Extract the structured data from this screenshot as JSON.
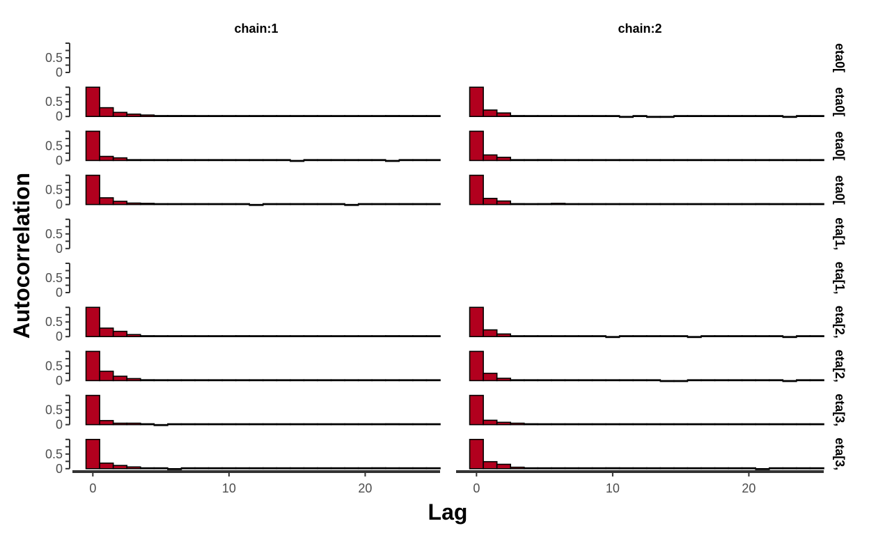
{
  "chart_data": {
    "type": "bar",
    "xlabel": "Lag",
    "ylabel": "Autocorrelation",
    "xlim": [
      -1.5,
      25.5
    ],
    "ylim": [
      0,
      1
    ],
    "x_ticks": [
      0,
      10,
      20
    ],
    "y_ticks": [
      0,
      0.5
    ],
    "grid": false,
    "colors": {
      "fill": "#b2001e",
      "outline": "#000000"
    },
    "facet_cols": [
      "chain:1",
      "chain:2"
    ],
    "facet_rows": [
      "eta0[",
      "eta0[",
      "eta0[",
      "eta0[",
      "eta[1,",
      "eta[1,",
      "eta[2,",
      "eta[2,",
      "eta[3,",
      "eta[3,"
    ],
    "lags": [
      0,
      1,
      2,
      3,
      4,
      5,
      6,
      7,
      8,
      9,
      10,
      11,
      12,
      13,
      14,
      15,
      16,
      17,
      18,
      19,
      20,
      21,
      22,
      23,
      24,
      25
    ],
    "panels": [
      {
        "row": 0,
        "col": 0,
        "values": []
      },
      {
        "row": 0,
        "col": 1,
        "values": []
      },
      {
        "row": 1,
        "col": 0,
        "values": [
          1,
          0.3,
          0.14,
          0.08,
          0.05,
          0.03,
          0.03,
          0.03,
          0.01,
          0.01,
          0.02,
          0.0,
          0.0,
          0.0,
          0.01,
          0.0,
          0.0,
          0.01,
          0.02,
          0.0,
          0.0,
          0.02,
          0.03,
          0.0,
          0.0,
          0.0
        ]
      },
      {
        "row": 1,
        "col": 1,
        "values": [
          1,
          0.22,
          0.12,
          0.03,
          0.0,
          0.02,
          0.01,
          0.01,
          0.0,
          0.01,
          0.0,
          -0.01,
          0.0,
          -0.01,
          -0.01,
          0.0,
          0.0,
          0.01,
          0.02,
          0.0,
          0.0,
          0.01,
          0.01,
          -0.01,
          0.0,
          0.0
        ]
      },
      {
        "row": 2,
        "col": 0,
        "values": [
          1,
          0.14,
          0.09,
          0.02,
          0.0,
          0.01,
          0.01,
          0.0,
          0.01,
          0.02,
          0.01,
          0.0,
          0.0,
          0.01,
          0.0,
          -0.01,
          0.0,
          0.01,
          0.0,
          0.02,
          0.02,
          0.01,
          -0.01,
          0.01,
          0.02,
          0.0
        ]
      },
      {
        "row": 2,
        "col": 1,
        "values": [
          1,
          0.19,
          0.11,
          0.02,
          0.02,
          0.03,
          0.01,
          0.02,
          0.02,
          0.01,
          0.01,
          0.01,
          0.01,
          0.0,
          0.0,
          0.02,
          0.0,
          0.01,
          0.0,
          0.0,
          0.0,
          0.01,
          0.0,
          0.0,
          0.01,
          0.0
        ]
      },
      {
        "row": 3,
        "col": 0,
        "values": [
          1,
          0.23,
          0.11,
          0.05,
          0.04,
          0.02,
          0.01,
          0.01,
          0.01,
          0.0,
          0.0,
          0.0,
          -0.01,
          0.0,
          0.02,
          0.01,
          0.0,
          0.01,
          0.0,
          -0.01,
          0.0,
          0.02,
          0.01,
          0.0,
          0.0,
          0.0
        ]
      },
      {
        "row": 3,
        "col": 1,
        "values": [
          1,
          0.21,
          0.12,
          0.03,
          0.02,
          0.03,
          0.04,
          0.02,
          0.01,
          0.02,
          0.01,
          0.0,
          0.0,
          0.01,
          0.0,
          0.0,
          0.0,
          0.01,
          0.0,
          0.01,
          0.02,
          0.03,
          0.01,
          0.02,
          0.0,
          0.0
        ]
      },
      {
        "row": 4,
        "col": 0,
        "values": []
      },
      {
        "row": 4,
        "col": 1,
        "values": []
      },
      {
        "row": 5,
        "col": 0,
        "values": []
      },
      {
        "row": 5,
        "col": 1,
        "values": []
      },
      {
        "row": 6,
        "col": 0,
        "values": [
          1,
          0.29,
          0.18,
          0.07,
          0.03,
          0.01,
          0.01,
          0.02,
          0.02,
          0.01,
          0.02,
          0.03,
          0.0,
          0.01,
          0.02,
          0.01,
          0.0,
          0.01,
          0.0,
          0.0,
          0.01,
          0.02,
          0.03,
          0.02,
          0.0,
          0.0
        ]
      },
      {
        "row": 6,
        "col": 1,
        "values": [
          1,
          0.23,
          0.09,
          0.02,
          0.0,
          0.01,
          0.0,
          0.0,
          0.01,
          0.0,
          -0.01,
          0.0,
          0.0,
          0.0,
          0.01,
          0.0,
          -0.02,
          0.0,
          0.01,
          0.01,
          0.02,
          0.0,
          0.0,
          -0.01,
          0.0,
          0.0
        ]
      },
      {
        "row": 7,
        "col": 0,
        "values": [
          1,
          0.32,
          0.15,
          0.07,
          0.03,
          0.02,
          0.0,
          0.01,
          0.0,
          0.01,
          0.01,
          0.0,
          0.0,
          0.01,
          0.02,
          0.0,
          0.01,
          0.0,
          0.01,
          0.0,
          0.01,
          0.02,
          0.01,
          0.0,
          0.0,
          0.0
        ]
      },
      {
        "row": 7,
        "col": 1,
        "values": [
          1,
          0.25,
          0.08,
          0.01,
          0.01,
          0.02,
          0.02,
          0.01,
          0.0,
          0.01,
          0.0,
          0.0,
          0.01,
          0.0,
          -0.01,
          -0.01,
          0.0,
          0.01,
          0.0,
          0.0,
          0.01,
          0.0,
          0.01,
          -0.01,
          0.0,
          0.0
        ]
      },
      {
        "row": 8,
        "col": 0,
        "values": [
          1,
          0.14,
          0.05,
          0.05,
          0.03,
          -0.01,
          0.0,
          0.01,
          0.01,
          0.02,
          0.0,
          0.02,
          0.01,
          0.01,
          0.01,
          0.01,
          0.01,
          0.01,
          0.0,
          0.02,
          0.0,
          0.0,
          0.03,
          0.02,
          0.02,
          0.0
        ]
      },
      {
        "row": 8,
        "col": 1,
        "values": [
          1,
          0.15,
          0.08,
          0.05,
          0.03,
          0.02,
          0.02,
          0.01,
          0.01,
          0.0,
          0.01,
          0.0,
          0.0,
          0.01,
          0.0,
          0.01,
          0.0,
          0.0,
          0.02,
          0.0,
          0.01,
          0.02,
          0.0,
          0.01,
          0.0,
          0.0
        ]
      },
      {
        "row": 9,
        "col": 0,
        "values": [
          1,
          0.19,
          0.11,
          0.06,
          0.02,
          0.02,
          -0.01,
          0.0,
          0.01,
          0.01,
          0.01,
          0.01,
          0.01,
          0.0,
          0.0,
          0.0,
          0.01,
          0.0,
          0.0,
          0.02,
          0.0,
          0.03,
          0.0,
          0.02,
          0.02,
          0.0
        ]
      },
      {
        "row": 9,
        "col": 1,
        "values": [
          1,
          0.24,
          0.15,
          0.05,
          0.02,
          0.02,
          0.01,
          0.01,
          0.01,
          0.02,
          0.03,
          0.01,
          0.02,
          0.01,
          0.0,
          0.0,
          0.01,
          0.0,
          0.01,
          0.0,
          0.0,
          -0.01,
          0.0,
          0.0,
          0.0,
          0.0
        ]
      }
    ]
  }
}
